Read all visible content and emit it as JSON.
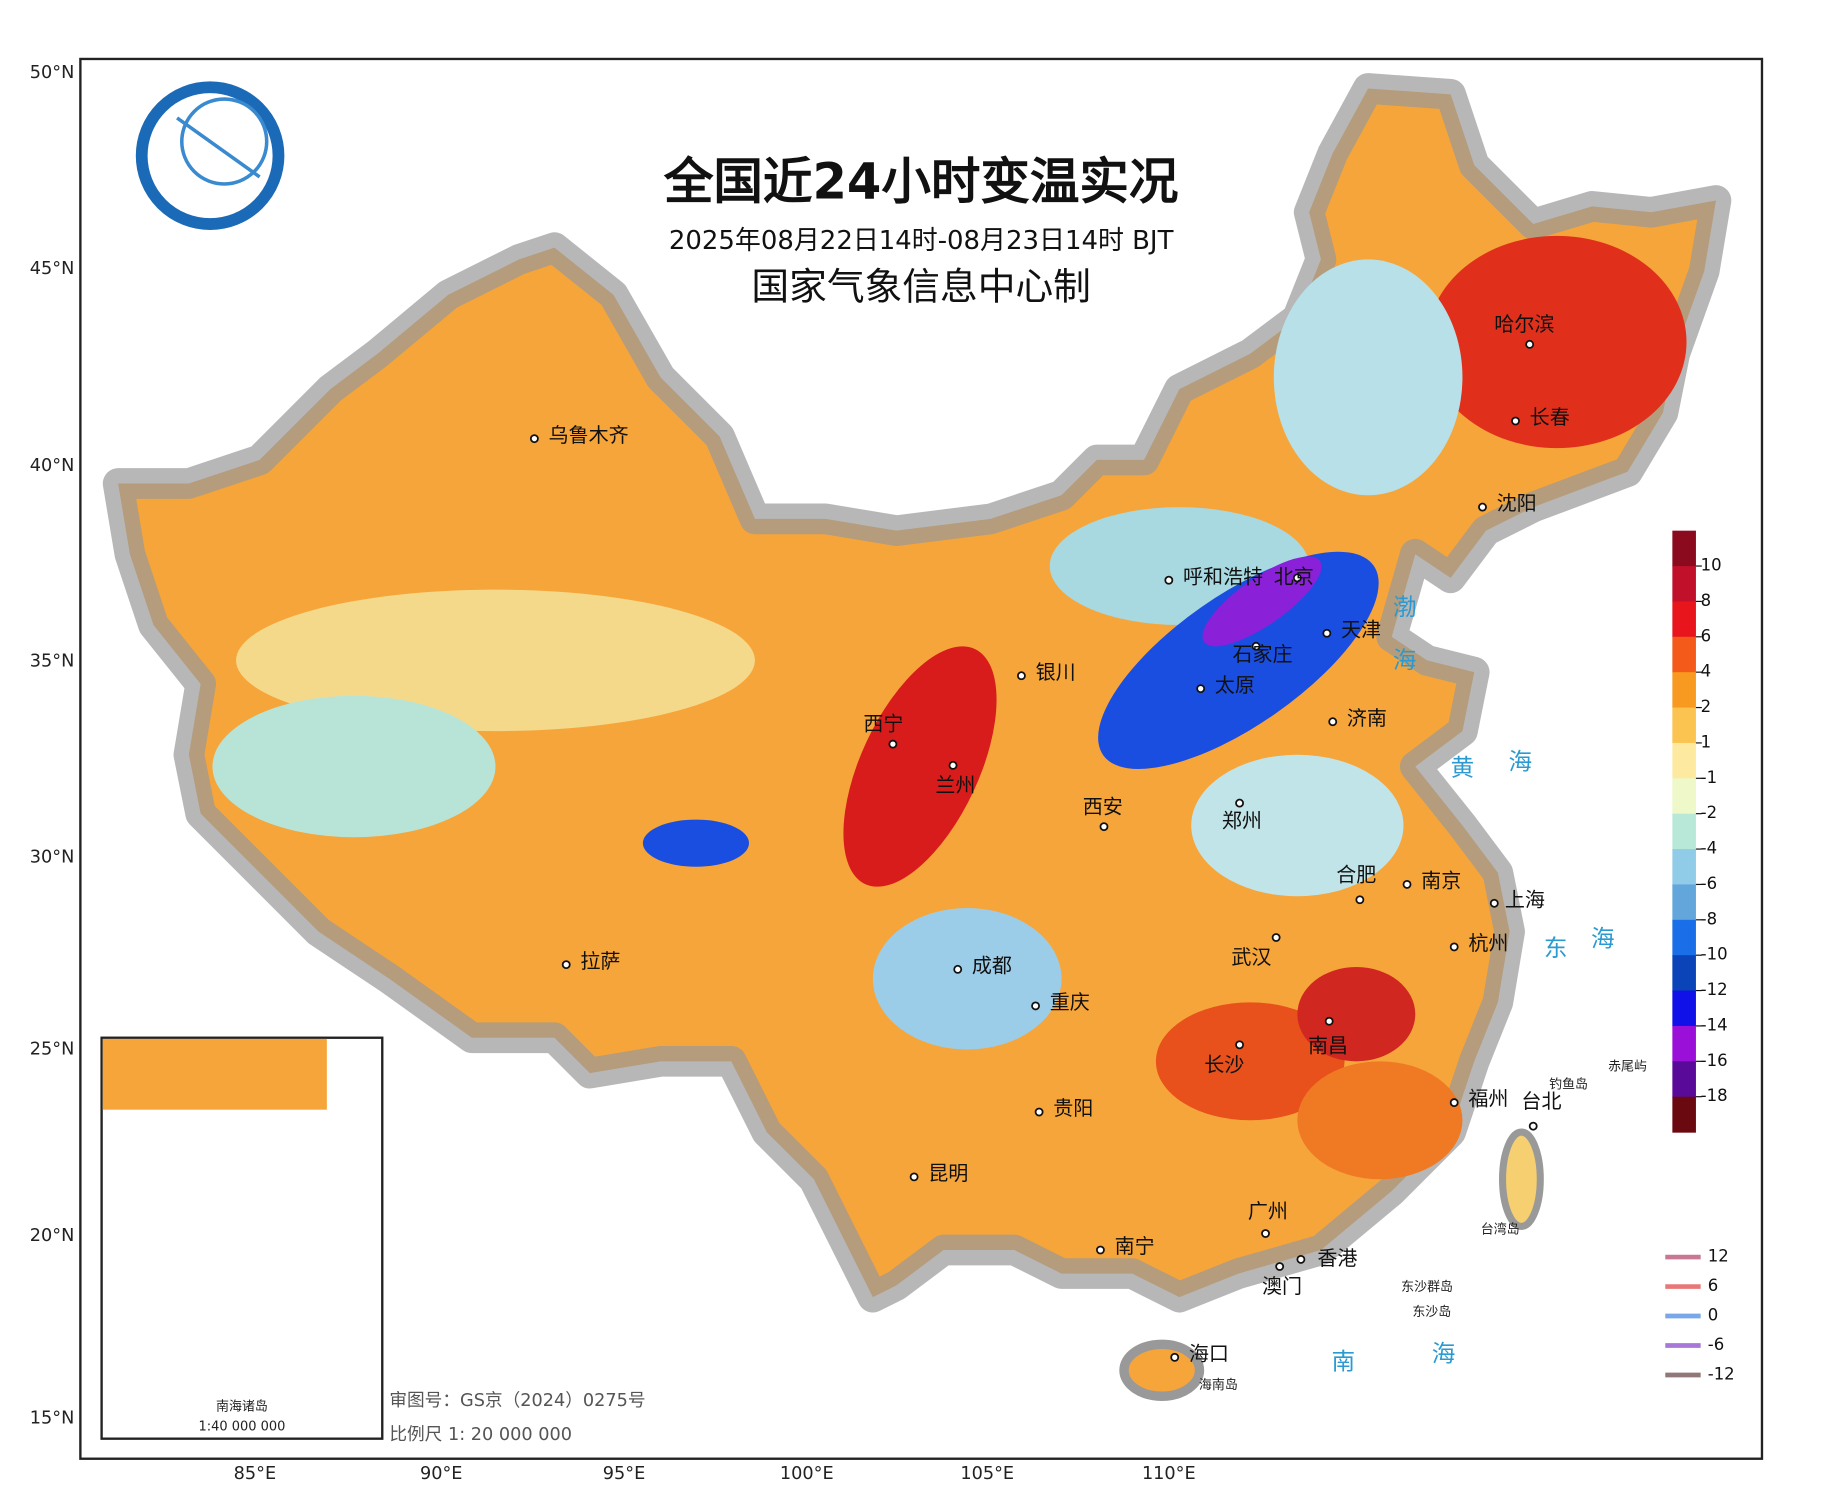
{
  "header": {
    "title": "全国近24小时变温实况",
    "subtitle": "2025年08月22日14时-08月23日14时 BJT",
    "producer": "国家气象信息中心制"
  },
  "lat_labels": [
    "50°N",
    "45°N",
    "40°N",
    "35°N",
    "30°N",
    "25°N",
    "20°N",
    "15°N"
  ],
  "lon_labels": [
    "85°E",
    "90°E",
    "95°E",
    "100°E",
    "105°E",
    "110°E"
  ],
  "cities": [
    "乌鲁木齐",
    "哈尔滨",
    "长春",
    "沈阳",
    "呼和浩特",
    "北京",
    "天津",
    "石家庄",
    "银川",
    "太原",
    "济南",
    "西宁",
    "兰州",
    "西安",
    "郑州",
    "合肥",
    "南京",
    "上海",
    "拉萨",
    "成都",
    "武汉",
    "杭州",
    "重庆",
    "长沙",
    "南昌",
    "福州",
    "贵阳",
    "昆明",
    "台北",
    "广州",
    "南宁",
    "香港",
    "澳门",
    "海口"
  ],
  "seas": [
    "渤",
    "海",
    "黄",
    "海",
    "东",
    "海",
    "南",
    "海"
  ],
  "islands": [
    "钓鱼岛",
    "赤尾屿",
    "台湾岛",
    "东沙群岛",
    "东沙岛",
    "海南岛"
  ],
  "colorbar": {
    "ticks": [
      10,
      8,
      6,
      4,
      2,
      1,
      -1,
      -2,
      -4,
      -6,
      -8,
      -10,
      -12,
      -14,
      -16,
      -18
    ],
    "colors": [
      "#8b0a1e",
      "#c0102a",
      "#e8161c",
      "#f45a1a",
      "#f89a20",
      "#fbc350",
      "#fde9a0",
      "#eef8c8",
      "#b8e8d8",
      "#90cce8",
      "#62a6dc",
      "#1a6ee8",
      "#0a44b8",
      "#1010e8",
      "#9a10d8",
      "#5a0a98",
      "#6a0a10"
    ]
  },
  "line_legend": {
    "values": [
      12,
      6,
      0,
      -6,
      -12
    ],
    "colors": [
      "#c87890",
      "#e87878",
      "#78a8e8",
      "#a878d8",
      "#907878"
    ]
  },
  "inset": {
    "title": "南海诸岛",
    "scale": "1:40 000 000"
  },
  "footer": {
    "review": "审图号：GS京（2024）0275号",
    "scale": "比例尺 1: 20 000 000"
  }
}
